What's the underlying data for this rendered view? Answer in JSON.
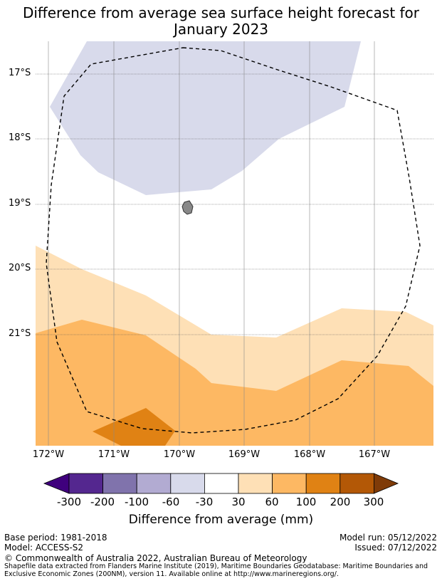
{
  "title_line1": "Difference from average sea surface height forecast for",
  "title_line2": "January 2023",
  "lat_labels": [
    "17°S",
    "18°S",
    "19°S",
    "20°S",
    "21°S"
  ],
  "lon_labels": [
    "172°W",
    "171°W",
    "170°W",
    "169°W",
    "168°W",
    "167°W"
  ],
  "colorbar": {
    "title": "Difference from average (mm)",
    "ticks": [
      "-300",
      "-200",
      "-100",
      "-60",
      "-30",
      "30",
      "60",
      "100",
      "200",
      "300"
    ],
    "colors": [
      "#3f007d",
      "#54278f",
      "#8073ac",
      "#b2abd2",
      "#d8daeb",
      "#ffffff",
      "#fee0b6",
      "#fdb863",
      "#e08214",
      "#b35806",
      "#7f3b08"
    ]
  },
  "regions": [
    {
      "name": "negative-30-to-60",
      "color": "#d8daeb"
    },
    {
      "name": "positive-30-to-60",
      "color": "#fee0b6"
    },
    {
      "name": "positive-60-to-100",
      "color": "#fdb863"
    },
    {
      "name": "positive-100-to-200",
      "color": "#e08214"
    }
  ],
  "footer": {
    "base_period": "Base period: 1981-2018",
    "model": "Model: ACCESS-S2",
    "model_run": "Model run: 05/12/2022",
    "issued": "Issued: 07/12/2022",
    "copyright": "© Commonwealth of Australia 2022, Australian Bureau of Meteorology",
    "shapefile_line1": "Shapefile data extracted from Flanders Marine Institute (2019), Maritime Boundaries Geodatabase: Maritime Boundaries and",
    "shapefile_line2": "Exclusive Economic Zones (200NM), version 11. Available online at http://www.marineregions.org/."
  }
}
